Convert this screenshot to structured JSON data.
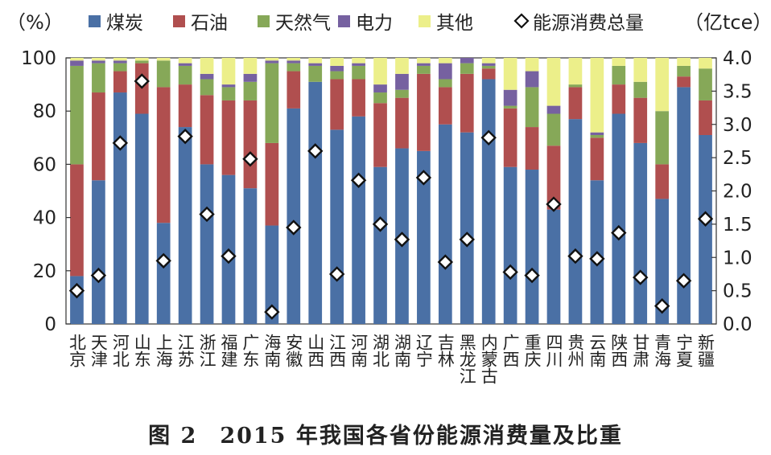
{
  "chart_data": {
    "type": "bar",
    "stacked": true,
    "categories": [
      "北京",
      "天津",
      "河北",
      "山东",
      "上海",
      "江苏",
      "浙江",
      "福建",
      "广东",
      "海南",
      "安徽",
      "山西",
      "江西",
      "河南",
      "湖北",
      "湖南",
      "辽宁",
      "吉林",
      "黑龙江",
      "内蒙古",
      "广西",
      "重庆",
      "四川",
      "贵州",
      "云南",
      "陕西",
      "甘肃",
      "青海",
      "宁夏",
      "新疆"
    ],
    "series": [
      {
        "name": "煤炭",
        "color": "#4a70a5",
        "values": [
          18,
          54,
          87,
          79,
          38,
          74,
          60,
          56,
          51,
          37,
          81,
          91,
          73,
          78,
          59,
          66,
          65,
          75,
          72,
          92,
          59,
          58,
          43,
          77,
          54,
          79,
          68,
          47,
          89,
          71
        ]
      },
      {
        "name": "石油",
        "color": "#b04f4f",
        "values": [
          42,
          33,
          8,
          19,
          51,
          16,
          26,
          28,
          33,
          31,
          14,
          0,
          19,
          14,
          24,
          19,
          29,
          14,
          22,
          4,
          22,
          16,
          24,
          12,
          16,
          11,
          17,
          13,
          4,
          13
        ]
      },
      {
        "name": "天然气",
        "color": "#86a858",
        "values": [
          37,
          11,
          3,
          1,
          10,
          7,
          6,
          5,
          7,
          30,
          3,
          6,
          3,
          5,
          4,
          3,
          3,
          3,
          4,
          1,
          1,
          15,
          12,
          1,
          1,
          7,
          6,
          20,
          4,
          12
        ]
      },
      {
        "name": "电力",
        "color": "#7661a0",
        "values": [
          2,
          1,
          1,
          0,
          0,
          1,
          2,
          1,
          3,
          1,
          1,
          1,
          2,
          1,
          3,
          6,
          1,
          6,
          2,
          1,
          6,
          6,
          3,
          0,
          1,
          0,
          0,
          0,
          0,
          0
        ]
      },
      {
        "name": "其他",
        "color": "#ecef8a",
        "values": [
          1,
          1,
          1,
          1,
          1,
          2,
          6,
          10,
          6,
          1,
          1,
          2,
          3,
          2,
          10,
          6,
          2,
          2,
          0,
          2,
          12,
          5,
          18,
          10,
          28,
          3,
          9,
          20,
          3,
          4
        ]
      }
    ],
    "line_series": {
      "name": "能源消费总量",
      "axis": "right",
      "marker": "diamond",
      "values": [
        0.5,
        0.73,
        2.72,
        3.65,
        0.95,
        2.82,
        1.65,
        1.02,
        2.48,
        0.18,
        1.45,
        2.6,
        0.75,
        2.16,
        1.5,
        1.27,
        2.2,
        0.93,
        1.27,
        2.8,
        0.78,
        0.73,
        1.8,
        1.02,
        0.98,
        1.37,
        0.7,
        0.27,
        0.65,
        1.58
      ]
    },
    "left_axis": {
      "label": "（%）",
      "min": 0,
      "max": 100,
      "ticks": [
        "0",
        "20",
        "40",
        "60",
        "80",
        "100"
      ]
    },
    "right_axis": {
      "label": "（亿tce）",
      "min": 0,
      "max": 4,
      "ticks": [
        "0.0",
        "0.5",
        "1.0",
        "1.5",
        "2.0",
        "2.5",
        "3.0",
        "3.5",
        "4.0"
      ]
    },
    "title": "2015 年我国各省份能源消费量及比重",
    "figure_label": "图 2",
    "legend_position": "top"
  }
}
